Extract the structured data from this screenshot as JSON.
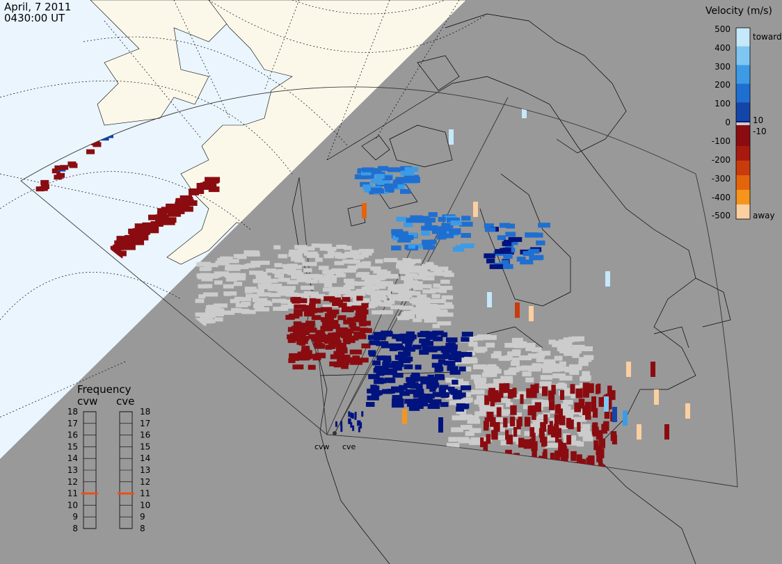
{
  "header": {
    "date": "April, 7 2011",
    "time": "0430:00 UT"
  },
  "velocity_legend": {
    "title": "Velocity (m/s)",
    "levels": [
      {
        "label": "500",
        "color": "#c6e8fb"
      },
      {
        "label": "400",
        "color": "#7fc7f2"
      },
      {
        "label": "300",
        "color": "#3d9be6"
      },
      {
        "label": "200",
        "color": "#1f6fd0"
      },
      {
        "label": "100",
        "color": "#1445a8"
      },
      {
        "label": "10",
        "color": "#00137e"
      },
      {
        "label": "0",
        "color": "#cccccc"
      },
      {
        "label": "-10",
        "color": "#8a0c10"
      },
      {
        "label": "-100",
        "color": "#a81a0e"
      },
      {
        "label": "-200",
        "color": "#c93b0c"
      },
      {
        "label": "-300",
        "color": "#e4640c"
      },
      {
        "label": "-400",
        "color": "#f5951e"
      },
      {
        "label": "-500",
        "color": "#fbcfa0"
      }
    ],
    "toward_label": "toward",
    "away_label": "away"
  },
  "frequency_panel": {
    "title": "Frequency",
    "radars": [
      {
        "name": "cvw",
        "frequency_mhz": 11.0
      },
      {
        "name": "cve",
        "frequency_mhz": 11.0
      }
    ],
    "ticks": [
      "18",
      "17",
      "16",
      "15",
      "14",
      "13",
      "12",
      "11",
      "10",
      "9",
      "8"
    ],
    "marker_color": "#e8501e"
  },
  "radar_sites": {
    "cvw_label": "cvw",
    "cve_label": "cve"
  },
  "colors": {
    "land": "#fbf8ea",
    "ocean": "#eaf5fd",
    "night_shade": "#999999",
    "ground_scatter": "#cccccc"
  }
}
